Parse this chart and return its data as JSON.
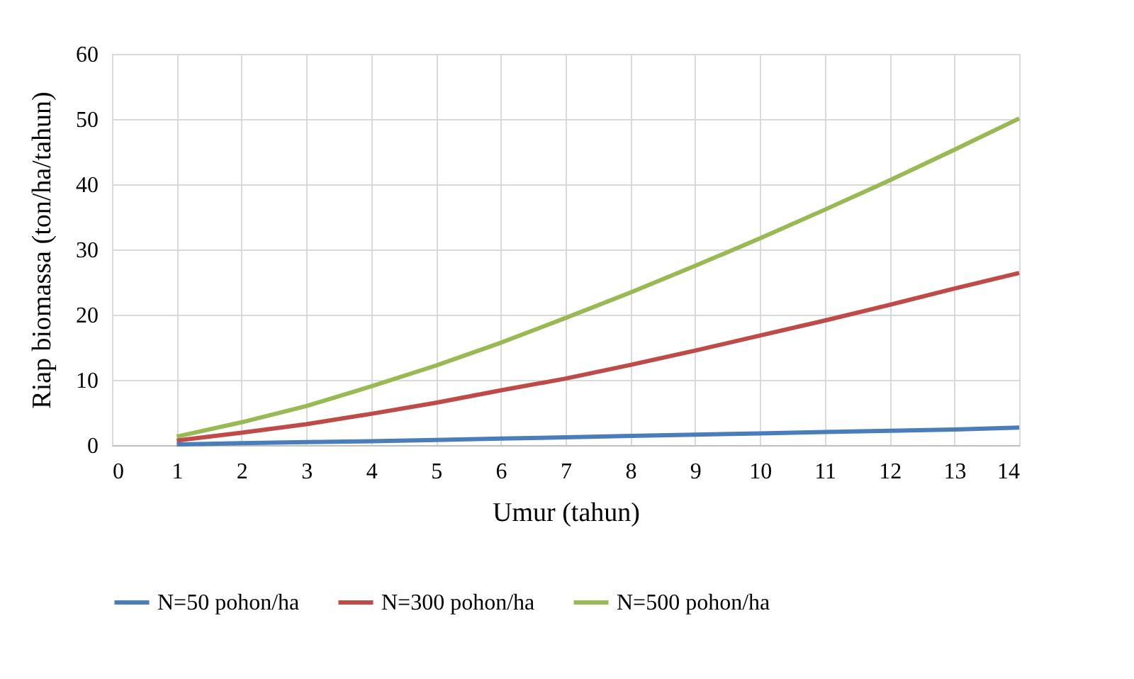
{
  "chart_data": {
    "type": "line",
    "xlabel": "Umur (tahun)",
    "ylabel": "Riap biomassa  (ton/ha/tahun)",
    "x": [
      1,
      2,
      3,
      4,
      5,
      6,
      7,
      8,
      9,
      10,
      11,
      12,
      13,
      14
    ],
    "series": [
      {
        "name": "N=50 pohon/ha",
        "color": "#4a7ebb",
        "values": [
          0.1,
          0.3,
          0.45,
          0.6,
          0.8,
          1.0,
          1.2,
          1.4,
          1.6,
          1.8,
          2.0,
          2.2,
          2.4,
          2.7
        ]
      },
      {
        "name": "N=300 pohon/ha",
        "color": "#be4b48",
        "values": [
          0.7,
          1.9,
          3.2,
          4.8,
          6.5,
          8.4,
          10.2,
          12.3,
          14.5,
          16.8,
          19.1,
          21.5,
          24.0,
          26.4
        ]
      },
      {
        "name": "N=500 pohon/ha",
        "color": "#98b954",
        "values": [
          1.3,
          3.5,
          6.0,
          9.0,
          12.2,
          15.7,
          19.5,
          23.4,
          27.5,
          31.7,
          36.1,
          40.6,
          45.3,
          50.1
        ]
      }
    ],
    "xlim": [
      0,
      14
    ],
    "xticks": [
      0,
      1,
      2,
      3,
      4,
      5,
      6,
      7,
      8,
      9,
      10,
      11,
      12,
      13,
      14
    ],
    "ylim": [
      0,
      60
    ],
    "yticks": [
      0,
      10,
      20,
      30,
      40,
      50,
      60
    ],
    "grid": true,
    "legend": "bottom",
    "marker": "none",
    "line_style": "solid"
  }
}
